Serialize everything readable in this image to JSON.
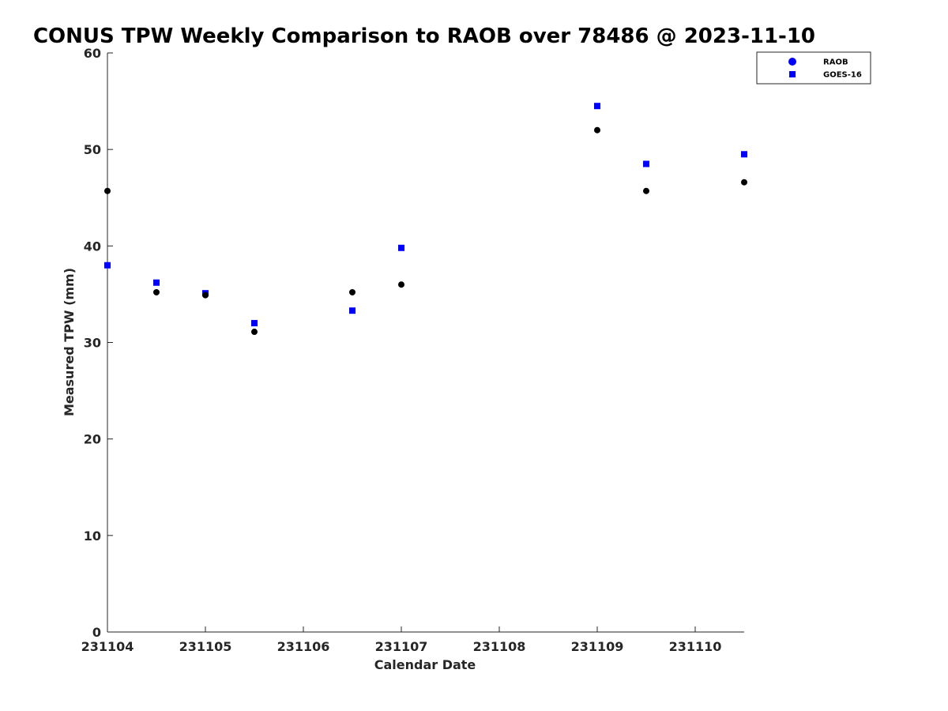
{
  "chart_data": {
    "type": "scatter",
    "title": "CONUS TPW Weekly Comparison to RAOB over 78486 @ 2023-11-10",
    "xlabel": "Calendar Date",
    "ylabel": "Measured TPW (mm)",
    "xlim": [
      0,
      6.5
    ],
    "ylim": [
      0,
      60
    ],
    "x_ticks": [
      0,
      1,
      2,
      3,
      4,
      5,
      6
    ],
    "x_tick_labels": [
      "231104",
      "231105",
      "231106",
      "231107",
      "231108",
      "231109",
      "231110"
    ],
    "y_ticks": [
      0,
      10,
      20,
      30,
      40,
      50,
      60
    ],
    "y_tick_labels": [
      "0",
      "10",
      "20",
      "30",
      "40",
      "50",
      "60"
    ],
    "legend_position": "top-right",
    "grid": false,
    "series": [
      {
        "name": "RAOB",
        "marker": "circle",
        "color": "#000000",
        "legend_color": "#0000ff",
        "x": [
          0,
          0.5,
          1,
          1.5,
          2.5,
          3,
          5,
          5.5,
          6.5
        ],
        "y": [
          45.7,
          35.2,
          34.9,
          31.1,
          35.2,
          36.0,
          52.0,
          45.7,
          46.6
        ]
      },
      {
        "name": "GOES-16",
        "marker": "square",
        "color": "#0000ff",
        "legend_color": "#0000ff",
        "x": [
          0,
          0.5,
          1,
          1.5,
          2.5,
          3,
          5,
          5.5,
          6.5
        ],
        "y": [
          38.0,
          36.2,
          35.1,
          32.0,
          33.3,
          39.8,
          54.5,
          48.5,
          49.5
        ]
      }
    ]
  }
}
